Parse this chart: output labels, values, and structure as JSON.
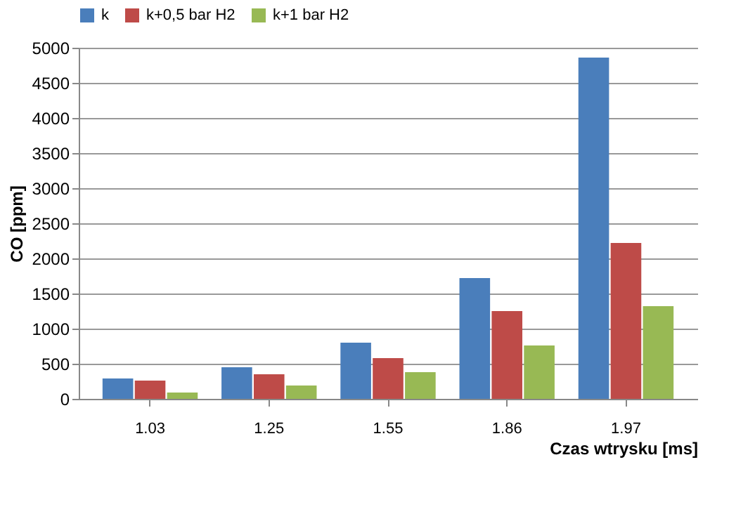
{
  "chart_data": {
    "type": "bar",
    "categories": [
      "1.03",
      "1.25",
      "1.55",
      "1.86",
      "1.97"
    ],
    "series": [
      {
        "name": "k",
        "color": "#4a7ebb",
        "values": [
          290,
          450,
          800,
          1720,
          4860
        ]
      },
      {
        "name": "k+0,5 bar H2",
        "color": "#be4b48",
        "values": [
          260,
          350,
          580,
          1250,
          2220
        ]
      },
      {
        "name": "k+1 bar H2",
        "color": "#98b954",
        "values": [
          90,
          190,
          380,
          760,
          1320
        ]
      }
    ],
    "xlabel": "Czas wtrysku [ms]",
    "ylabel": "CO [ppm]",
    "ylim": [
      0,
      5000
    ],
    "yticks": [
      0,
      500,
      1000,
      1500,
      2000,
      2500,
      3000,
      3500,
      4000,
      4500,
      5000
    ],
    "grid": "y",
    "legend": "top"
  }
}
